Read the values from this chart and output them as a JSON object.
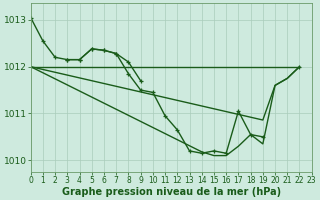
{
  "background_color": "#ceeade",
  "grid_color": "#aaccbb",
  "line_color": "#1a5c1a",
  "ylim": [
    1009.75,
    1013.35
  ],
  "xlim": [
    0,
    23
  ],
  "yticks": [
    1010,
    1011,
    1012,
    1013
  ],
  "xticks": [
    0,
    1,
    2,
    3,
    4,
    5,
    6,
    7,
    8,
    9,
    10,
    11,
    12,
    13,
    14,
    15,
    16,
    17,
    18,
    19,
    20,
    21,
    22,
    23
  ],
  "xlabel": "Graphe pression niveau de la mer (hPa)",
  "s1": [
    1013.05,
    1012.55,
    1012.2,
    1012.15,
    1012.15,
    1012.38,
    1012.35,
    1012.28,
    1011.85,
    1011.5,
    1011.45,
    1010.95,
    1010.65,
    1010.2,
    1010.15,
    1010.2,
    1010.15,
    1011.05,
    1010.55,
    1010.5,
    null,
    null,
    1012.0,
    null
  ],
  "s2": [
    1012.0,
    1012.0,
    1012.0,
    1012.0,
    1012.0,
    1012.0,
    1012.0,
    1012.0,
    1012.0,
    1012.0,
    1012.0,
    1012.0,
    1012.0,
    1012.0,
    1012.0,
    1012.0,
    1012.0,
    1012.0,
    1012.0,
    1012.0,
    1012.0,
    1012.0,
    1012.0,
    null
  ],
  "s3": [
    1012.0,
    1011.94,
    1011.88,
    1011.82,
    1011.76,
    1011.7,
    1011.64,
    1011.58,
    1011.52,
    1011.46,
    1011.4,
    1011.34,
    1011.28,
    1011.22,
    1011.16,
    1011.1,
    1011.04,
    1010.98,
    1010.92,
    1010.86,
    1011.6,
    1011.75,
    1012.0,
    null
  ],
  "s4": [
    1012.0,
    1011.87,
    1011.74,
    1011.61,
    1011.48,
    1011.35,
    1011.22,
    1011.09,
    1010.96,
    1010.83,
    1010.7,
    1010.57,
    1010.44,
    1010.31,
    1010.18,
    1010.1,
    1010.1,
    1010.3,
    1010.55,
    1010.35,
    1011.6,
    1011.75,
    1012.0,
    null
  ],
  "s5_x": [
    3,
    4,
    5,
    6,
    7,
    8,
    9
  ],
  "s5_y": [
    1012.15,
    1012.15,
    1012.38,
    1012.35,
    1012.28,
    1012.1,
    1011.7
  ],
  "line_width": 1.0,
  "marker_size": 3.5
}
